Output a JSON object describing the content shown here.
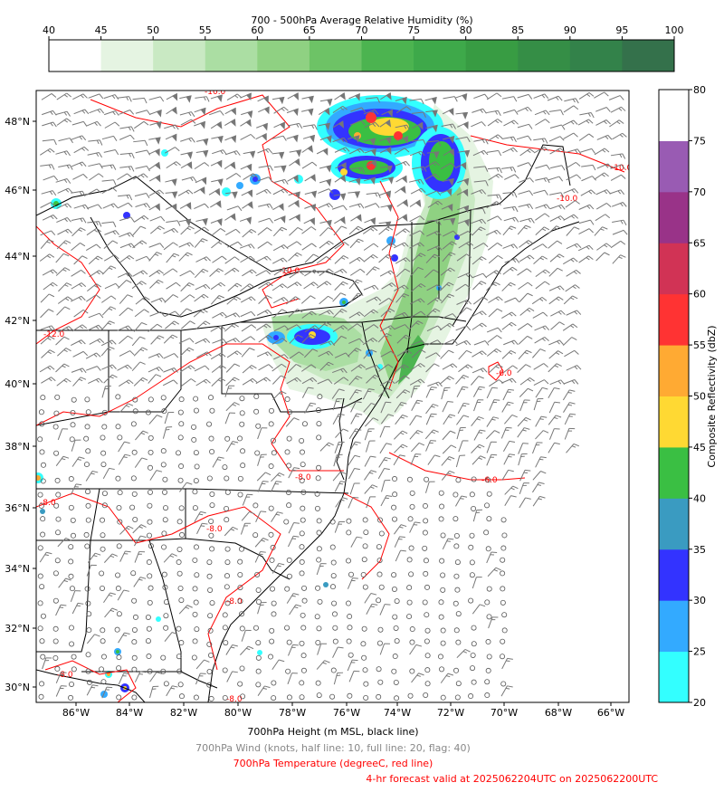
{
  "top_colorbar": {
    "title": "700 - 500hPa Average Relative Humidity (%)",
    "min": 40,
    "max": 100,
    "tick_labels": [
      "40",
      "45",
      "50",
      "55",
      "60",
      "65",
      "70",
      "75",
      "80",
      "85",
      "90",
      "95",
      "100"
    ],
    "colors": [
      "#ffffff",
      "#e5f4e2",
      "#c9e9c3",
      "#abdea3",
      "#8fd182",
      "#6dc366",
      "#4cb450",
      "#3ea94a",
      "#389c43",
      "#358e46",
      "#33824a",
      "#34714b"
    ]
  },
  "right_colorbar": {
    "label": "Composite Reflectivity (dbZ)",
    "min": 20,
    "max": 80,
    "tick_labels": [
      "20",
      "25",
      "30",
      "35",
      "40",
      "45",
      "50",
      "55",
      "60",
      "65",
      "70",
      "75",
      "80"
    ],
    "colors": [
      "#33ffff",
      "#33aaff",
      "#3333ff",
      "#3a9bc1",
      "#3abf43",
      "#ffd933",
      "#ffaa33",
      "#ff3333",
      "#d13355",
      "#993388",
      "#995bb3",
      "#ffffff"
    ]
  },
  "map": {
    "lat_labels": [
      "48°N",
      "46°N",
      "44°N",
      "42°N",
      "40°N",
      "38°N",
      "36°N",
      "34°N",
      "32°N",
      "30°N"
    ],
    "lon_labels": [
      "86°W",
      "84°W",
      "82°W",
      "80°W",
      "78°W",
      "76°W",
      "74°W",
      "72°W",
      "70°W",
      "68°W",
      "66°W"
    ],
    "contour_labels": [
      "-10.0",
      "-10.0",
      "-12.0",
      "-8.0",
      "-8.0",
      "-8.0",
      "-8.0",
      "-8.0",
      "-6.0",
      "-6.0",
      "-8.0",
      "-10.0",
      "-10.0"
    ]
  },
  "legend": {
    "height": "700hPa Height (m MSL, black line)",
    "wind": "700hPa Wind (knots, half line: 10, full line: 20, flag: 40)",
    "temp": "700hPa Temperature (degreeC, red line)",
    "valid": "4-hr forecast valid at 2025062204UTC on 2025062200UTC"
  },
  "colors": {
    "temp_line": "#ff0000",
    "wind_barb": "#777777",
    "height_line": "#000000"
  }
}
